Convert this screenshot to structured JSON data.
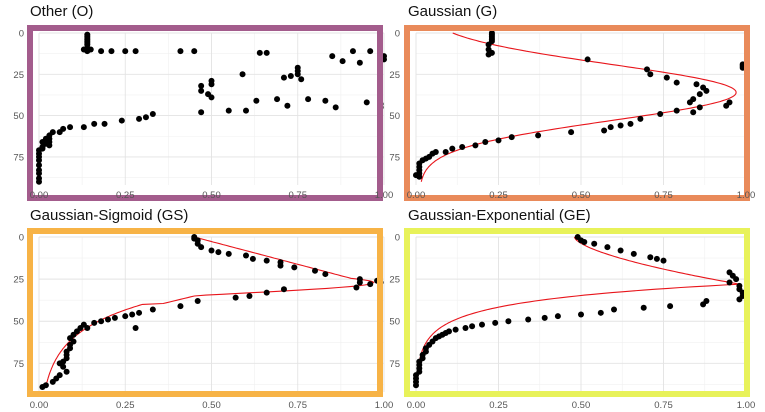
{
  "chart_data": [
    {
      "type": "scatter",
      "title": "Other (O)",
      "border_color": "#a35c8c",
      "xlim": [
        0,
        1
      ],
      "ylim": [
        0,
        92
      ],
      "x_ticks": [
        "0.00",
        "0.25",
        "0.50",
        "0.75",
        "1.00"
      ],
      "y_ticks": [
        "0",
        "25",
        "50",
        "75"
      ],
      "grid": true,
      "points": [
        [
          0.14,
          1
        ],
        [
          0.14,
          2
        ],
        [
          0.14,
          3
        ],
        [
          0.14,
          4
        ],
        [
          0.14,
          5
        ],
        [
          0.14,
          6
        ],
        [
          0.14,
          7
        ],
        [
          0.14,
          9
        ],
        [
          0.13,
          10
        ],
        [
          0.15,
          10
        ],
        [
          0.14,
          11
        ],
        [
          0.18,
          11
        ],
        [
          0.21,
          11
        ],
        [
          0.25,
          11
        ],
        [
          0.28,
          11
        ],
        [
          0.41,
          11
        ],
        [
          0.45,
          11
        ],
        [
          0.64,
          12
        ],
        [
          0.66,
          12
        ],
        [
          0.91,
          11
        ],
        [
          0.96,
          11
        ],
        [
          1.0,
          14
        ],
        [
          1.0,
          16
        ],
        [
          0.85,
          14
        ],
        [
          0.88,
          17
        ],
        [
          0.93,
          18
        ],
        [
          0.75,
          21
        ],
        [
          0.75,
          23
        ],
        [
          0.75,
          25
        ],
        [
          0.76,
          28
        ],
        [
          0.71,
          27
        ],
        [
          0.73,
          26
        ],
        [
          0.59,
          25
        ],
        [
          0.5,
          29
        ],
        [
          0.5,
          31
        ],
        [
          0.47,
          32
        ],
        [
          0.47,
          35
        ],
        [
          0.49,
          37
        ],
        [
          0.5,
          39
        ],
        [
          0.47,
          48
        ],
        [
          0.55,
          47
        ],
        [
          0.6,
          47
        ],
        [
          0.63,
          41
        ],
        [
          0.69,
          40
        ],
        [
          0.78,
          40
        ],
        [
          0.72,
          44
        ],
        [
          0.83,
          41
        ],
        [
          0.86,
          45
        ],
        [
          0.95,
          42
        ],
        [
          0.99,
          43
        ],
        [
          0.99,
          45
        ],
        [
          0.33,
          49
        ],
        [
          0.31,
          51
        ],
        [
          0.29,
          52
        ],
        [
          0.24,
          53
        ],
        [
          0.19,
          55
        ],
        [
          0.16,
          55
        ],
        [
          0.13,
          57
        ],
        [
          0.09,
          57
        ],
        [
          0.07,
          58
        ],
        [
          0.06,
          60
        ],
        [
          0.04,
          60
        ],
        [
          0.03,
          62
        ],
        [
          0.02,
          64
        ],
        [
          0.03,
          64
        ],
        [
          0.03,
          66
        ],
        [
          0.03,
          68
        ],
        [
          0.01,
          66
        ],
        [
          0.02,
          67
        ],
        [
          0.01,
          69
        ],
        [
          0.01,
          70
        ],
        [
          0.0,
          71
        ],
        [
          0.0,
          73
        ],
        [
          0.0,
          75
        ],
        [
          0.0,
          77
        ],
        [
          0.0,
          80
        ],
        [
          0.0,
          83
        ],
        [
          0.0,
          85
        ],
        [
          0.0,
          88
        ],
        [
          0.0,
          90
        ]
      ]
    },
    {
      "type": "scatter",
      "title": "Gaussian (G)",
      "border_color": "#e98a5a",
      "xlim": [
        0,
        1
      ],
      "ylim": [
        0,
        92
      ],
      "x_ticks": [
        "0.00",
        "0.25",
        "0.50",
        "0.75",
        "1.00"
      ],
      "y_ticks": [
        "0",
        "25",
        "50",
        "75"
      ],
      "grid": true,
      "fit": "gaussian",
      "points": [
        [
          0.23,
          0
        ],
        [
          0.23,
          1
        ],
        [
          0.23,
          2
        ],
        [
          0.23,
          3
        ],
        [
          0.23,
          4
        ],
        [
          0.23,
          5
        ],
        [
          0.22,
          7
        ],
        [
          0.22,
          10
        ],
        [
          0.22,
          13
        ],
        [
          0.23,
          12
        ],
        [
          0.52,
          16
        ],
        [
          0.7,
          22
        ],
        [
          0.71,
          25
        ],
        [
          0.76,
          27
        ],
        [
          0.79,
          30
        ],
        [
          0.85,
          31
        ],
        [
          0.87,
          33
        ],
        [
          0.88,
          35
        ],
        [
          0.86,
          37
        ],
        [
          0.84,
          40
        ],
        [
          0.83,
          42
        ],
        [
          0.86,
          45
        ],
        [
          0.84,
          48
        ],
        [
          0.79,
          47
        ],
        [
          0.74,
          49
        ],
        [
          0.68,
          52
        ],
        [
          0.65,
          55
        ],
        [
          0.62,
          56
        ],
        [
          0.59,
          57
        ],
        [
          0.57,
          59
        ],
        [
          0.47,
          60
        ],
        [
          0.37,
          62
        ],
        [
          0.29,
          63
        ],
        [
          0.25,
          65
        ],
        [
          0.21,
          66
        ],
        [
          0.18,
          68
        ],
        [
          0.14,
          69
        ],
        [
          0.11,
          70
        ],
        [
          0.09,
          72
        ],
        [
          0.06,
          72
        ],
        [
          0.05,
          73
        ],
        [
          0.04,
          75
        ],
        [
          0.03,
          76
        ],
        [
          0.02,
          77
        ],
        [
          0.01,
          79
        ],
        [
          0.01,
          81
        ],
        [
          0.01,
          83
        ],
        [
          0.01,
          85
        ],
        [
          0.0,
          86
        ],
        [
          0.01,
          87
        ],
        [
          0.94,
          44
        ],
        [
          0.95,
          42
        ],
        [
          0.99,
          19
        ],
        [
          0.99,
          20
        ],
        [
          0.99,
          21
        ]
      ]
    },
    {
      "type": "scatter",
      "title": "Gaussian-Sigmoid (GS)",
      "border_color": "#f7b346",
      "xlim": [
        0,
        1
      ],
      "ylim": [
        0,
        92
      ],
      "x_ticks": [
        "0.00",
        "0.25",
        "0.50",
        "0.75",
        "1.00"
      ],
      "y_ticks": [
        "0",
        "25",
        "50",
        "75"
      ],
      "grid": true,
      "fit": "gaussian-sigmoid",
      "points": [
        [
          0.45,
          0
        ],
        [
          0.45,
          1
        ],
        [
          0.46,
          2
        ],
        [
          0.46,
          4
        ],
        [
          0.47,
          6
        ],
        [
          0.5,
          8
        ],
        [
          0.52,
          9
        ],
        [
          0.55,
          10
        ],
        [
          0.6,
          11
        ],
        [
          0.62,
          13
        ],
        [
          0.66,
          14
        ],
        [
          0.7,
          15
        ],
        [
          0.7,
          17
        ],
        [
          0.74,
          18
        ],
        [
          0.8,
          20
        ],
        [
          0.83,
          22
        ],
        [
          0.93,
          25
        ],
        [
          0.93,
          27
        ],
        [
          0.96,
          28
        ],
        [
          0.98,
          26
        ],
        [
          0.99,
          27
        ],
        [
          0.92,
          30
        ],
        [
          0.71,
          31
        ],
        [
          0.66,
          33
        ],
        [
          0.61,
          35
        ],
        [
          0.57,
          36
        ],
        [
          0.46,
          38
        ],
        [
          0.41,
          41
        ],
        [
          0.33,
          43
        ],
        [
          0.29,
          45
        ],
        [
          0.27,
          46
        ],
        [
          0.25,
          47
        ],
        [
          0.22,
          48
        ],
        [
          0.2,
          49
        ],
        [
          0.18,
          50
        ],
        [
          0.16,
          51
        ],
        [
          0.13,
          52
        ],
        [
          0.14,
          54
        ],
        [
          0.12,
          54
        ],
        [
          0.28,
          54
        ],
        [
          0.11,
          56
        ],
        [
          0.1,
          58
        ],
        [
          0.09,
          60
        ],
        [
          0.1,
          62
        ],
        [
          0.09,
          64
        ],
        [
          0.09,
          66
        ],
        [
          0.08,
          68
        ],
        [
          0.08,
          70
        ],
        [
          0.08,
          72
        ],
        [
          0.07,
          74
        ],
        [
          0.06,
          75
        ],
        [
          0.07,
          77
        ],
        [
          0.08,
          80
        ],
        [
          0.06,
          82
        ],
        [
          0.05,
          84
        ],
        [
          0.04,
          86
        ],
        [
          0.02,
          88
        ],
        [
          0.01,
          89
        ]
      ]
    },
    {
      "type": "scatter",
      "title": "Gaussian-Exponential (GE)",
      "border_color": "#e8f25a",
      "xlim": [
        0,
        1
      ],
      "ylim": [
        0,
        92
      ],
      "x_ticks": [
        "0.00",
        "0.25",
        "0.50",
        "0.75",
        "1.00"
      ],
      "y_ticks": [
        "0",
        "25",
        "50",
        "75"
      ],
      "grid": true,
      "fit": "gaussian-exponential",
      "points": [
        [
          0.49,
          0
        ],
        [
          0.5,
          2
        ],
        [
          0.51,
          3
        ],
        [
          0.54,
          4
        ],
        [
          0.58,
          6
        ],
        [
          0.62,
          8
        ],
        [
          0.66,
          10
        ],
        [
          0.71,
          12
        ],
        [
          0.73,
          13
        ],
        [
          0.75,
          14
        ],
        [
          0.95,
          21
        ],
        [
          0.96,
          23
        ],
        [
          0.97,
          25
        ],
        [
          0.95,
          27
        ],
        [
          0.98,
          29
        ],
        [
          0.98,
          31
        ],
        [
          0.99,
          33
        ],
        [
          0.99,
          35
        ],
        [
          0.98,
          37
        ],
        [
          0.88,
          38
        ],
        [
          0.87,
          40
        ],
        [
          0.77,
          41
        ],
        [
          0.69,
          42
        ],
        [
          0.6,
          43
        ],
        [
          0.56,
          45
        ],
        [
          0.5,
          46
        ],
        [
          0.43,
          47
        ],
        [
          0.39,
          48
        ],
        [
          0.34,
          49
        ],
        [
          0.28,
          50
        ],
        [
          0.24,
          51
        ],
        [
          0.2,
          52
        ],
        [
          0.17,
          53
        ],
        [
          0.15,
          54
        ],
        [
          0.12,
          55
        ],
        [
          0.1,
          56
        ],
        [
          0.09,
          57
        ],
        [
          0.08,
          58
        ],
        [
          0.07,
          59
        ],
        [
          0.06,
          60
        ],
        [
          0.05,
          62
        ],
        [
          0.04,
          64
        ],
        [
          0.03,
          66
        ],
        [
          0.03,
          68
        ],
        [
          0.02,
          70
        ],
        [
          0.02,
          72
        ],
        [
          0.01,
          74
        ],
        [
          0.01,
          76
        ],
        [
          0.01,
          78
        ],
        [
          0.01,
          80
        ],
        [
          0.0,
          82
        ],
        [
          0.0,
          84
        ],
        [
          0.0,
          86
        ],
        [
          0.0,
          88
        ]
      ]
    }
  ]
}
